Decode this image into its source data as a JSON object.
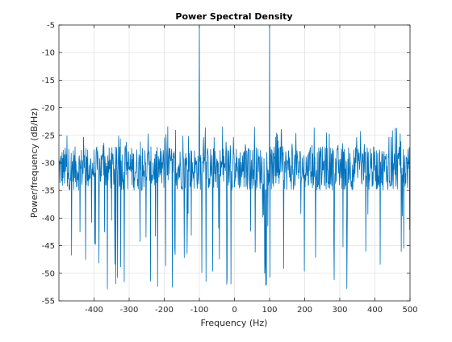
{
  "chart_data": {
    "type": "line",
    "title": "Power Spectral Density",
    "xlabel": "Frequency (Hz)",
    "ylabel": "Power/frequency (dB/Hz)",
    "xlim": [
      -500,
      500
    ],
    "ylim": [
      -55,
      -5
    ],
    "grid": true,
    "xticks": [
      -400,
      -300,
      -200,
      -100,
      0,
      100,
      200,
      300,
      400,
      500
    ],
    "xtick_labels": [
      "-400",
      "-300",
      "-200",
      "-100",
      "0",
      "100",
      "200",
      "300",
      "400",
      "500"
    ],
    "yticks": [
      -5,
      -10,
      -15,
      -20,
      -25,
      -30,
      -35,
      -40,
      -45,
      -50,
      -55
    ],
    "ytick_labels": [
      "-5",
      "-10",
      "-15",
      "-20",
      "-25",
      "-30",
      "-35",
      "-40",
      "-45",
      "-50",
      "-55"
    ],
    "line_color": "#0072BD",
    "series": [
      {
        "noise_floor_mean": -31,
        "noise_range": [
          -55,
          -22
        ],
        "peaks": [
          {
            "x": -100,
            "y": -5
          },
          {
            "x": 100,
            "y": -5
          }
        ]
      }
    ]
  }
}
